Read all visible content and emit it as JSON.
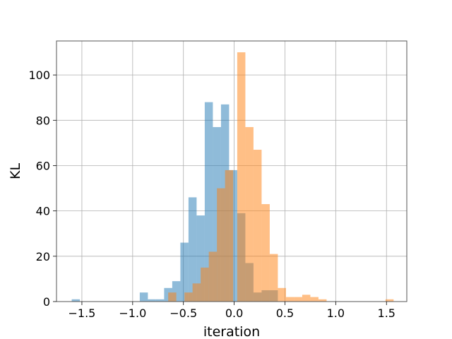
{
  "chart_data": {
    "type": "histogram",
    "title": "",
    "xlabel": "iteration",
    "ylabel": "KL",
    "xlim": [
      -1.75,
      1.7
    ],
    "ylim": [
      0,
      115
    ],
    "xticks": [
      "−1.5",
      "−1.0",
      "−0.5",
      "0.0",
      "0.5",
      "1.0",
      "1.5"
    ],
    "xtick_values": [
      -1.5,
      -1.0,
      -0.5,
      0.0,
      0.5,
      1.0,
      1.5
    ],
    "yticks": [
      "0",
      "20",
      "40",
      "60",
      "80",
      "100"
    ],
    "ytick_values": [
      0,
      20,
      40,
      60,
      80,
      100
    ],
    "grid": true,
    "series": [
      {
        "color": "#1f77b4",
        "alpha": 0.5,
        "bins": [
          {
            "x0": -1.6,
            "x1": -1.52,
            "count": 1
          },
          {
            "x0": -0.93,
            "x1": -0.85,
            "count": 4
          },
          {
            "x0": -0.85,
            "x1": -0.77,
            "count": 1
          },
          {
            "x0": -0.77,
            "x1": -0.69,
            "count": 1
          },
          {
            "x0": -0.69,
            "x1": -0.61,
            "count": 6
          },
          {
            "x0": -0.61,
            "x1": -0.53,
            "count": 9
          },
          {
            "x0": -0.53,
            "x1": -0.45,
            "count": 26
          },
          {
            "x0": -0.45,
            "x1": -0.37,
            "count": 46
          },
          {
            "x0": -0.37,
            "x1": -0.29,
            "count": 38
          },
          {
            "x0": -0.29,
            "x1": -0.21,
            "count": 88
          },
          {
            "x0": -0.21,
            "x1": -0.13,
            "count": 77
          },
          {
            "x0": -0.13,
            "x1": -0.05,
            "count": 87
          },
          {
            "x0": -0.05,
            "x1": 0.03,
            "count": 58
          },
          {
            "x0": 0.03,
            "x1": 0.11,
            "count": 39
          },
          {
            "x0": 0.11,
            "x1": 0.19,
            "count": 17
          },
          {
            "x0": 0.19,
            "x1": 0.27,
            "count": 4
          },
          {
            "x0": 0.27,
            "x1": 0.35,
            "count": 5
          },
          {
            "x0": 0.35,
            "x1": 0.43,
            "count": 5
          }
        ]
      },
      {
        "color": "#ff7f0e",
        "alpha": 0.5,
        "bins": [
          {
            "x0": -0.65,
            "x1": -0.57,
            "count": 4
          },
          {
            "x0": -0.49,
            "x1": -0.41,
            "count": 4
          },
          {
            "x0": -0.41,
            "x1": -0.33,
            "count": 8
          },
          {
            "x0": -0.33,
            "x1": -0.25,
            "count": 15
          },
          {
            "x0": -0.25,
            "x1": -0.17,
            "count": 22
          },
          {
            "x0": -0.17,
            "x1": -0.09,
            "count": 50
          },
          {
            "x0": -0.09,
            "x1": -0.01,
            "count": 58
          },
          {
            "x0": 0.03,
            "x1": 0.11,
            "count": 110
          },
          {
            "x0": 0.11,
            "x1": 0.19,
            "count": 77
          },
          {
            "x0": 0.19,
            "x1": 0.27,
            "count": 67
          },
          {
            "x0": 0.27,
            "x1": 0.35,
            "count": 43
          },
          {
            "x0": 0.35,
            "x1": 0.43,
            "count": 21
          },
          {
            "x0": 0.43,
            "x1": 0.51,
            "count": 6
          },
          {
            "x0": 0.51,
            "x1": 0.59,
            "count": 2
          },
          {
            "x0": 0.59,
            "x1": 0.67,
            "count": 2
          },
          {
            "x0": 0.67,
            "x1": 0.75,
            "count": 3
          },
          {
            "x0": 0.75,
            "x1": 0.83,
            "count": 2
          },
          {
            "x0": 0.83,
            "x1": 0.91,
            "count": 1
          },
          {
            "x0": 1.49,
            "x1": 1.57,
            "count": 1
          }
        ]
      }
    ]
  }
}
